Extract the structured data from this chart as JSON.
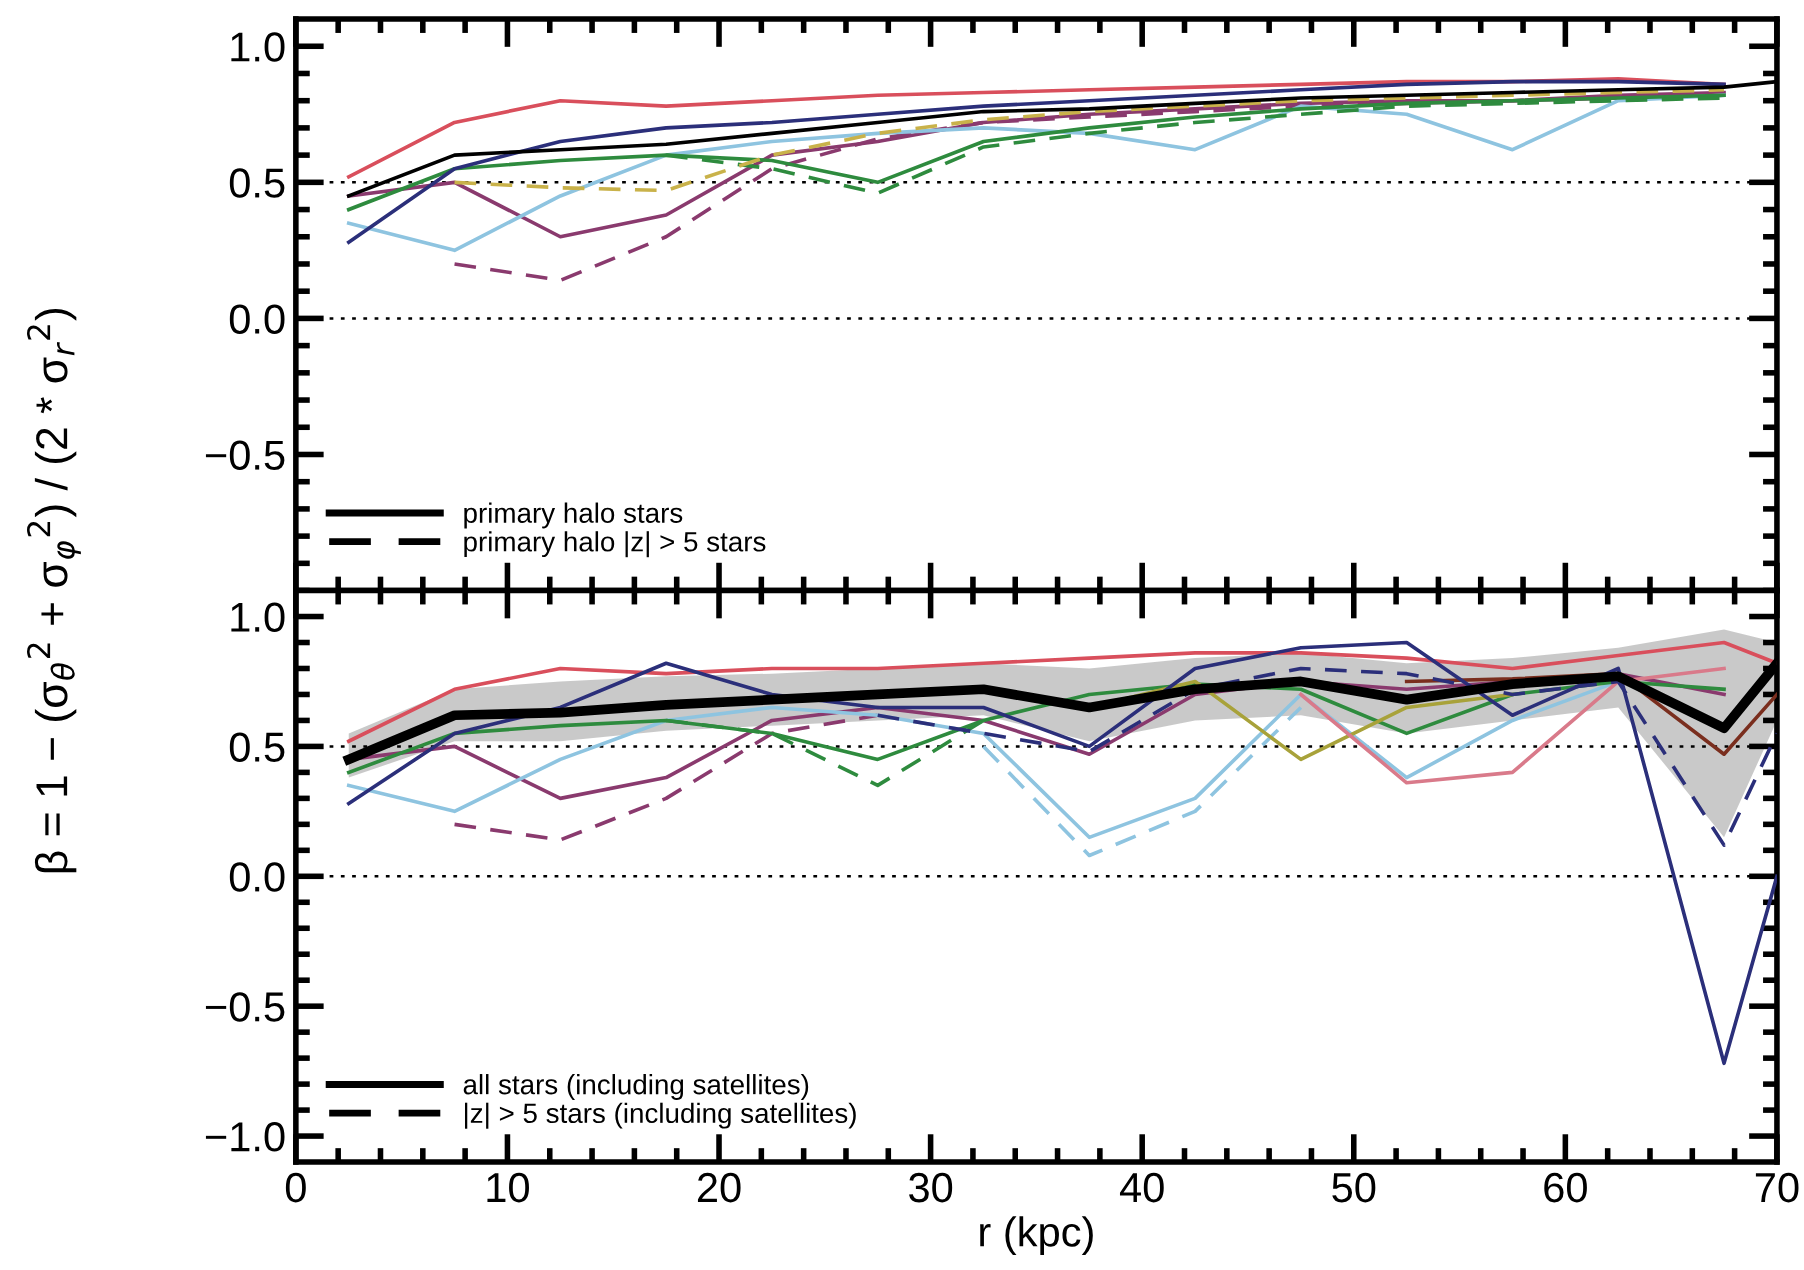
{
  "chart_data": [
    {
      "type": "line",
      "ylabel": "β = 1 − (σ$_{θ}$$^{2}$ + σ$_{φ}$$^{2}$) / (2 * σ$_{r}$$^{2}$)",
      "xlim": [
        0,
        70
      ],
      "xticks": [
        0,
        10,
        20,
        30,
        40,
        50,
        60,
        70
      ],
      "ylim": [
        -1.0,
        1.1
      ],
      "yticks": [
        {
          "value": -0.5,
          "label": "−0.5"
        },
        {
          "value": 0,
          "label": "0.0"
        },
        {
          "value": 0.5,
          "label": "0.5"
        },
        {
          "value": 1,
          "label": "1.0"
        }
      ],
      "tick_labels": "y",
      "legend": "bottom left",
      "line_style": "solid",
      "ref_lines": [
        {
          "axis": "y",
          "value": 0.5,
          "line_style": "dotted",
          "color": "#000000"
        },
        {
          "axis": "y",
          "value": 0.0,
          "line_style": "dotted",
          "color": "#000000"
        }
      ],
      "series": [
        {
          "color": "#d94f5c",
          "x": [
            2.5,
            7.5,
            12.5,
            17.5,
            22.5,
            27.5,
            32.5,
            37.5,
            42.5,
            47.5,
            52.5,
            57.5,
            62.5,
            67.5
          ],
          "values": [
            0.52,
            0.72,
            0.8,
            0.78,
            0.8,
            0.82,
            0.83,
            0.84,
            0.85,
            0.86,
            0.87,
            0.87,
            0.88,
            0.86
          ]
        },
        {
          "color": "#8a3a6e",
          "x": [
            2.5,
            7.5,
            12.5,
            17.5,
            22.5,
            27.5,
            32.5,
            37.5,
            42.5,
            47.5,
            52.5,
            57.5,
            62.5,
            67.5
          ],
          "values": [
            0.45,
            0.5,
            0.3,
            0.38,
            0.6,
            0.65,
            0.72,
            0.75,
            0.77,
            0.79,
            0.8,
            0.8,
            0.82,
            0.83
          ]
        },
        {
          "color": "#8a3a6e",
          "line_style": "dashed",
          "x": [
            7.5,
            12.5,
            17.5,
            22.5,
            27.5,
            32.5,
            37.5,
            42.5,
            47.5,
            52.5,
            57.5,
            62.5,
            67.5
          ],
          "values": [
            0.2,
            0.14,
            0.3,
            0.55,
            0.66,
            0.72,
            0.74,
            0.76,
            0.78,
            0.79,
            0.8,
            0.81,
            0.82
          ]
        },
        {
          "color": "#8ec4e0",
          "x": [
            2.5,
            7.5,
            12.5,
            17.5,
            22.5,
            27.5,
            32.5,
            37.5,
            42.5,
            47.5,
            52.5,
            57.5,
            62.5,
            67.5
          ],
          "values": [
            0.35,
            0.25,
            0.45,
            0.6,
            0.65,
            0.68,
            0.7,
            0.68,
            0.62,
            0.78,
            0.75,
            0.62,
            0.8,
            0.82
          ]
        },
        {
          "color": "#2e8b3e",
          "x": [
            2.5,
            7.5,
            12.5,
            17.5,
            22.5,
            27.5,
            32.5,
            37.5,
            42.5,
            47.5,
            52.5,
            57.5,
            62.5,
            67.5
          ],
          "values": [
            0.4,
            0.55,
            0.58,
            0.6,
            0.58,
            0.5,
            0.65,
            0.7,
            0.74,
            0.77,
            0.79,
            0.8,
            0.81,
            0.82
          ]
        },
        {
          "color": "#2e8b3e",
          "line_style": "dashed",
          "x": [
            17.5,
            22.5,
            27.5,
            32.5,
            37.5,
            42.5,
            47.5,
            52.5,
            57.5,
            62.5,
            67.5
          ],
          "values": [
            0.6,
            0.55,
            0.46,
            0.63,
            0.68,
            0.72,
            0.75,
            0.78,
            0.79,
            0.8,
            0.81
          ]
        },
        {
          "color": "#c9b24a",
          "line_style": "dashed",
          "x": [
            7.5,
            12.5,
            17.5,
            22.5,
            27.5,
            32.5,
            37.5,
            42.5,
            47.5,
            52.5,
            57.5,
            62.5,
            67.5
          ],
          "values": [
            0.5,
            0.48,
            0.47,
            0.6,
            0.68,
            0.73,
            0.76,
            0.78,
            0.8,
            0.81,
            0.82,
            0.83,
            0.84
          ]
        },
        {
          "color": "#2b2f7a",
          "x": [
            2.5,
            7.5,
            12.5,
            17.5,
            22.5,
            27.5,
            32.5,
            37.5,
            42.5,
            47.5,
            52.5,
            57.5,
            62.5,
            67.5
          ],
          "values": [
            0.28,
            0.55,
            0.65,
            0.7,
            0.72,
            0.75,
            0.78,
            0.8,
            0.82,
            0.84,
            0.86,
            0.87,
            0.87,
            0.86
          ]
        },
        {
          "color": "#000000",
          "name": "primary halo stars",
          "x": [
            2.5,
            7.5,
            12.5,
            17.5,
            22.5,
            27.5,
            32.5,
            37.5,
            42.5,
            47.5,
            52.5,
            57.5,
            62.5,
            67.5,
            70
          ],
          "values": [
            0.45,
            0.6,
            0.62,
            0.64,
            0.68,
            0.72,
            0.76,
            0.77,
            0.79,
            0.81,
            0.82,
            0.83,
            0.84,
            0.85,
            0.87
          ]
        },
        {
          "color": "#000000",
          "name": "primary halo |z| > 5 stars",
          "line_style": "dashed"
        }
      ]
    },
    {
      "type": "line",
      "xlabel": "r (kpc)",
      "xlim": [
        0,
        70
      ],
      "xticks": [
        0,
        10,
        20,
        30,
        40,
        50,
        60,
        70
      ],
      "ylim": [
        -1.1,
        1.1
      ],
      "yticks": [
        {
          "value": -1,
          "label": "−1.0"
        },
        {
          "value": -0.5,
          "label": "−0.5"
        },
        {
          "value": 0,
          "label": "0.0"
        },
        {
          "value": 0.5,
          "label": "0.5"
        },
        {
          "value": 1,
          "label": "1.0"
        }
      ],
      "legend": "bottom left",
      "line_style": "solid",
      "ref_lines": [
        {
          "axis": "y",
          "value": 0.5,
          "line_style": "dotted",
          "color": "#000000"
        },
        {
          "axis": "y",
          "value": 0.0,
          "line_style": "dotted",
          "color": "#000000"
        }
      ],
      "series": [
        {
          "color": "#d94f5c",
          "x": [
            2.5,
            7.5,
            12.5,
            17.5,
            22.5,
            27.5,
            32.5,
            37.5,
            42.5,
            47.5,
            52.5,
            57.5,
            62.5,
            67.5,
            70
          ],
          "values": [
            0.52,
            0.72,
            0.8,
            0.78,
            0.8,
            0.8,
            0.82,
            0.84,
            0.86,
            0.86,
            0.84,
            0.8,
            0.85,
            0.9,
            0.82
          ]
        },
        {
          "color": "#8a3a6e",
          "x": [
            2.5,
            7.5,
            12.5,
            17.5,
            22.5,
            27.5,
            32.5,
            37.5,
            42.5,
            47.5,
            52.5,
            57.5,
            62.5,
            67.5
          ],
          "values": [
            0.45,
            0.5,
            0.3,
            0.38,
            0.6,
            0.65,
            0.6,
            0.47,
            0.7,
            0.75,
            0.72,
            0.75,
            0.78,
            0.7
          ]
        },
        {
          "color": "#8a3a6e",
          "line_style": "dashed",
          "x": [
            7.5,
            12.5,
            17.5,
            22.5,
            27.5
          ],
          "values": [
            0.2,
            0.14,
            0.3,
            0.55,
            0.62
          ]
        },
        {
          "color": "#8ec4e0",
          "x": [
            2.5,
            7.5,
            12.5,
            17.5,
            22.5,
            27.5,
            32.5,
            37.5,
            42.5,
            47.5,
            52.5,
            57.5,
            62.5
          ],
          "values": [
            0.35,
            0.25,
            0.45,
            0.6,
            0.65,
            0.62,
            0.55,
            0.15,
            0.3,
            0.7,
            0.38,
            0.6,
            0.75
          ]
        },
        {
          "color": "#8ec4e0",
          "line_style": "dashed",
          "x": [
            32.5,
            37.5,
            42.5,
            47.5
          ],
          "values": [
            0.5,
            0.08,
            0.25,
            0.65
          ]
        },
        {
          "color": "#2e8b3e",
          "x": [
            2.5,
            7.5,
            12.5,
            17.5,
            22.5,
            27.5,
            32.5,
            37.5,
            42.5,
            47.5,
            52.5,
            57.5,
            62.5,
            67.5
          ],
          "values": [
            0.4,
            0.55,
            0.58,
            0.6,
            0.55,
            0.45,
            0.6,
            0.7,
            0.74,
            0.72,
            0.55,
            0.7,
            0.75,
            0.72
          ]
        },
        {
          "color": "#2e8b3e",
          "line_style": "dashed",
          "x": [
            17.5,
            22.5,
            27.5,
            32.5
          ],
          "values": [
            0.6,
            0.55,
            0.35,
            0.6
          ]
        },
        {
          "color": "#a8a23a",
          "x": [
            37.5,
            42.5,
            47.5,
            52.5,
            57.5
          ],
          "values": [
            0.65,
            0.75,
            0.45,
            0.65,
            0.7
          ]
        },
        {
          "color": "#d97a8a",
          "x": [
            47.5,
            52.5,
            57.5,
            62.5,
            67.5
          ],
          "values": [
            0.7,
            0.36,
            0.4,
            0.75,
            0.8
          ]
        },
        {
          "color": "#7a2e1e",
          "x": [
            52.5,
            57.5,
            62.5,
            67.5,
            70
          ],
          "values": [
            0.75,
            0.76,
            0.78,
            0.47,
            0.7
          ]
        },
        {
          "color": "#2b2f7a",
          "x": [
            2.5,
            7.5,
            12.5,
            17.5,
            22.5,
            27.5,
            32.5,
            37.5,
            42.5,
            47.5,
            52.5,
            57.5,
            62.5,
            67.5,
            70
          ],
          "values": [
            0.28,
            0.55,
            0.65,
            0.82,
            0.7,
            0.65,
            0.65,
            0.5,
            0.8,
            0.88,
            0.9,
            0.62,
            0.8,
            -0.72,
            0.0
          ]
        },
        {
          "color": "#2b2f7a",
          "line_style": "dashed",
          "x": [
            27.5,
            32.5,
            37.5,
            42.5,
            47.5,
            52.5,
            57.5,
            62.5,
            67.5,
            70
          ],
          "values": [
            0.62,
            0.55,
            0.48,
            0.72,
            0.8,
            0.78,
            0.7,
            0.75,
            0.12,
            0.55
          ]
        },
        {
          "color": "#000000",
          "name": "all stars (including satellites)",
          "x": [
            2.5,
            7.5,
            12.5,
            17.5,
            22.5,
            27.5,
            32.5,
            37.5,
            42.5,
            47.5,
            52.5,
            57.5,
            62.5,
            67.5,
            70
          ],
          "values": [
            0.45,
            0.62,
            0.63,
            0.66,
            0.68,
            0.7,
            0.72,
            0.65,
            0.72,
            0.75,
            0.68,
            0.74,
            0.77,
            0.57,
            0.82
          ],
          "lower": [
            0.38,
            0.52,
            0.52,
            0.56,
            0.58,
            0.6,
            0.62,
            0.52,
            0.6,
            0.62,
            0.55,
            0.6,
            0.65,
            0.15,
            0.6
          ],
          "upper": [
            0.55,
            0.72,
            0.75,
            0.77,
            0.78,
            0.8,
            0.82,
            0.8,
            0.84,
            0.86,
            0.82,
            0.84,
            0.88,
            0.95,
            0.9
          ]
        },
        {
          "color": "#000000",
          "name": "|z| > 5 stars (including satellites)",
          "line_style": "dashed"
        }
      ]
    }
  ]
}
